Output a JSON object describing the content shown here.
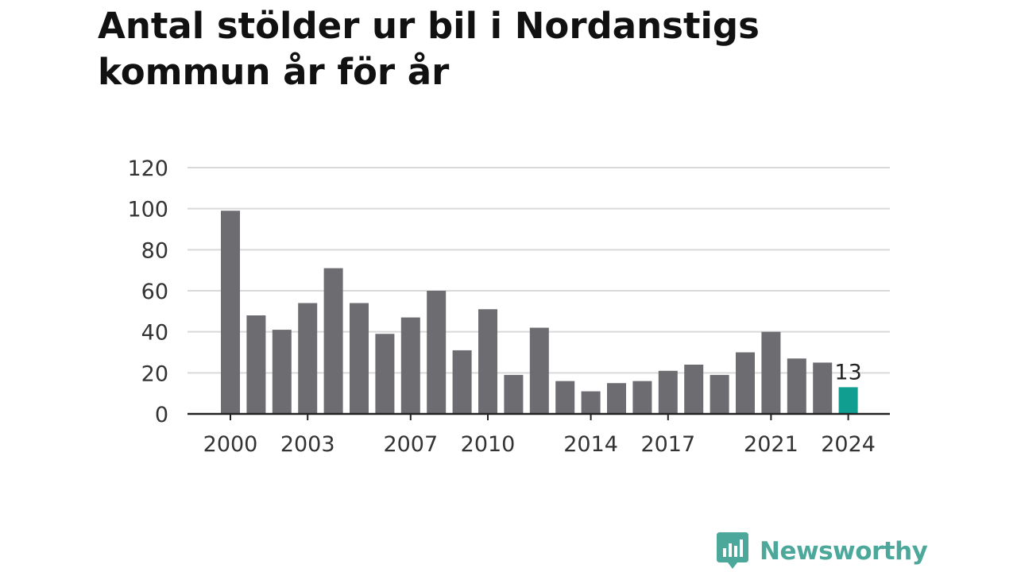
{
  "title": "Antal stölder ur bil i Nordanstigs kommun år för år",
  "brand": {
    "name": "Newsworthy",
    "color": "#4ca89b",
    "icon": "newsworthy-speech-bubble-chart-icon"
  },
  "colors": {
    "bar": "#6d6c71",
    "highlight": "#0f9e8f",
    "grid": "#d9d9d9",
    "axis": "#222222"
  },
  "chart_data": {
    "type": "bar",
    "categories": [
      "2000",
      "2001",
      "2002",
      "2003",
      "2004",
      "2005",
      "2006",
      "2007",
      "2008",
      "2009",
      "2010",
      "2011",
      "2012",
      "2013",
      "2014",
      "2015",
      "2016",
      "2017",
      "2018",
      "2019",
      "2020",
      "2021",
      "2022",
      "2023",
      "2024"
    ],
    "values": [
      99,
      48,
      41,
      54,
      71,
      54,
      39,
      47,
      60,
      31,
      51,
      19,
      42,
      16,
      11,
      15,
      16,
      21,
      24,
      19,
      30,
      40,
      27,
      25,
      13
    ],
    "highlight_index": 24,
    "data_labels": [
      {
        "index": 24,
        "text": "13"
      }
    ],
    "xtick_labels": [
      "2000",
      "2003",
      "2007",
      "2010",
      "2014",
      "2017",
      "2021",
      "2024"
    ],
    "yticks": [
      0,
      20,
      40,
      60,
      80,
      100,
      120
    ],
    "ylim": [
      0,
      120
    ],
    "xlabel": "",
    "ylabel": "",
    "grid": true,
    "legend": "none"
  }
}
